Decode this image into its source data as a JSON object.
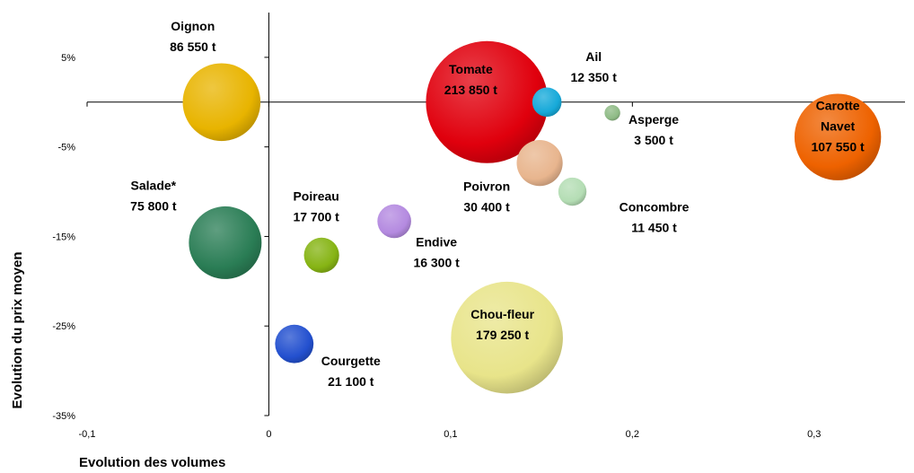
{
  "chart_data": {
    "type": "bubble",
    "xlabel": "Evolution des volumes",
    "ylabel": "Evolution du prix moyen",
    "xlim": [
      -0.1,
      0.35
    ],
    "ylim": [
      -0.35,
      0.1
    ],
    "x_ticks": [
      {
        "value": -0.1,
        "label": "-0,1"
      },
      {
        "value": 0,
        "label": "0"
      },
      {
        "value": 0.1,
        "label": "0,1"
      },
      {
        "value": 0.2,
        "label": "0,2"
      },
      {
        "value": 0.3,
        "label": "0,3"
      }
    ],
    "y_ticks": [
      {
        "value": 0.05,
        "label": "5%"
      },
      {
        "value": -0.05,
        "label": "-5%"
      },
      {
        "value": -0.15,
        "label": "-15%"
      },
      {
        "value": -0.25,
        "label": "-25%"
      },
      {
        "value": -0.35,
        "label": "-35%"
      }
    ],
    "grid": false,
    "legend": "none",
    "points": [
      {
        "name": "Oignon",
        "volume": "86 550 t",
        "x": -0.026,
        "y": 0.0,
        "size": 86550,
        "color": "#e8b400",
        "label_lines": [
          "Oignon",
          "86 550 t"
        ]
      },
      {
        "name": "Tomate",
        "volume": "213 850 t",
        "x": 0.12,
        "y": 0.0,
        "size": 213850,
        "color": "#e0000d",
        "label_lines": [
          "Tomate",
          "213 850 t"
        ]
      },
      {
        "name": "Ail",
        "volume": "12 350 t",
        "x": 0.153,
        "y": 0.0,
        "size": 12350,
        "color": "#16a9d9",
        "label_lines": [
          "Ail",
          "12 350 t"
        ]
      },
      {
        "name": "Asperge",
        "volume": "3 500 t",
        "x": 0.189,
        "y": -0.012,
        "size": 3500,
        "color": "#8fbb86",
        "label_lines": [
          "Asperge",
          "3 500 t"
        ]
      },
      {
        "name": "Carotte Navet",
        "volume": "107 550 t",
        "x": 0.313,
        "y": -0.039,
        "size": 107550,
        "color": "#ee6200",
        "label_lines": [
          "Carotte",
          "Navet",
          "107 550 t"
        ]
      },
      {
        "name": "Salade*",
        "volume": "75 800 t",
        "x": -0.024,
        "y": -0.157,
        "size": 75800,
        "color": "#2a7d55",
        "label_lines": [
          "Salade*",
          "75 800 t"
        ]
      },
      {
        "name": "Poireau",
        "volume": "17 700 t",
        "x": 0.029,
        "y": -0.171,
        "size": 17700,
        "color": "#86b414",
        "label_lines": [
          "Poireau",
          "17 700 t"
        ]
      },
      {
        "name": "Endive",
        "volume": "16 300 t",
        "x": 0.069,
        "y": -0.133,
        "size": 16300,
        "color": "#b48ae0",
        "label_lines": [
          "Endive",
          "16 300 t"
        ]
      },
      {
        "name": "Poivron",
        "volume": "30 400 t",
        "x": 0.149,
        "y": -0.068,
        "size": 30400,
        "color": "#e8b58e",
        "label_lines": [
          "Poivron",
          "30 400 t"
        ]
      },
      {
        "name": "Concombre",
        "volume": "11 450 t",
        "x": 0.167,
        "y": -0.1,
        "size": 11450,
        "color": "#b4ddb4",
        "label_lines": [
          "Concombre",
          "11 450 t"
        ]
      },
      {
        "name": "Chou-fleur",
        "volume": "179 250 t",
        "x": 0.131,
        "y": -0.263,
        "size": 179250,
        "color": "#e8e48a",
        "label_lines": [
          "Chou-fleur",
          "179 250 t"
        ]
      },
      {
        "name": "Courgette",
        "volume": "21 100 t",
        "x": 0.014,
        "y": -0.27,
        "size": 21100,
        "color": "#2350cf",
        "label_lines": [
          "Courgette",
          "21 100 t"
        ]
      }
    ]
  }
}
